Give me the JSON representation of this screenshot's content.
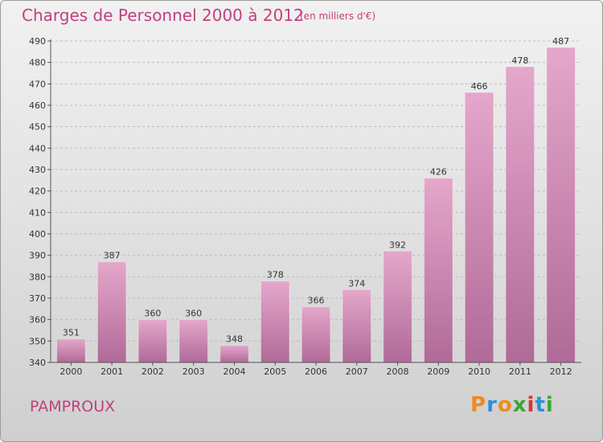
{
  "header": {
    "title": "Charges de Personnel 2000 à 2012",
    "subtitle": "(en milliers d'€)"
  },
  "footer": {
    "commune": "PAMPROUX",
    "logo_text": "Proxiti"
  },
  "colors": {
    "title": "#c2407e",
    "bar_top": "#e5a7cb",
    "bar_bottom": "#b06a98",
    "logo": [
      "#f08a1e",
      "#2e8fd6",
      "#f08a1e",
      "#3aa635",
      "#e0302e",
      "#2e8fd6",
      "#3aa635"
    ]
  },
  "chart_data": {
    "type": "bar",
    "title": "Charges de Personnel 2000 à 2012",
    "subtitle": "(en milliers d'€)",
    "categories": [
      "2000",
      "2001",
      "2002",
      "2003",
      "2004",
      "2005",
      "2006",
      "2007",
      "2008",
      "2009",
      "2010",
      "2011",
      "2012"
    ],
    "values": [
      351,
      387,
      360,
      360,
      348,
      378,
      366,
      374,
      392,
      426,
      466,
      478,
      487
    ],
    "ylim": [
      340,
      490
    ],
    "yticks": [
      340,
      350,
      360,
      370,
      380,
      390,
      400,
      410,
      420,
      430,
      440,
      450,
      460,
      470,
      480,
      490
    ],
    "grid": "horizontal dashed",
    "legend": "none"
  }
}
